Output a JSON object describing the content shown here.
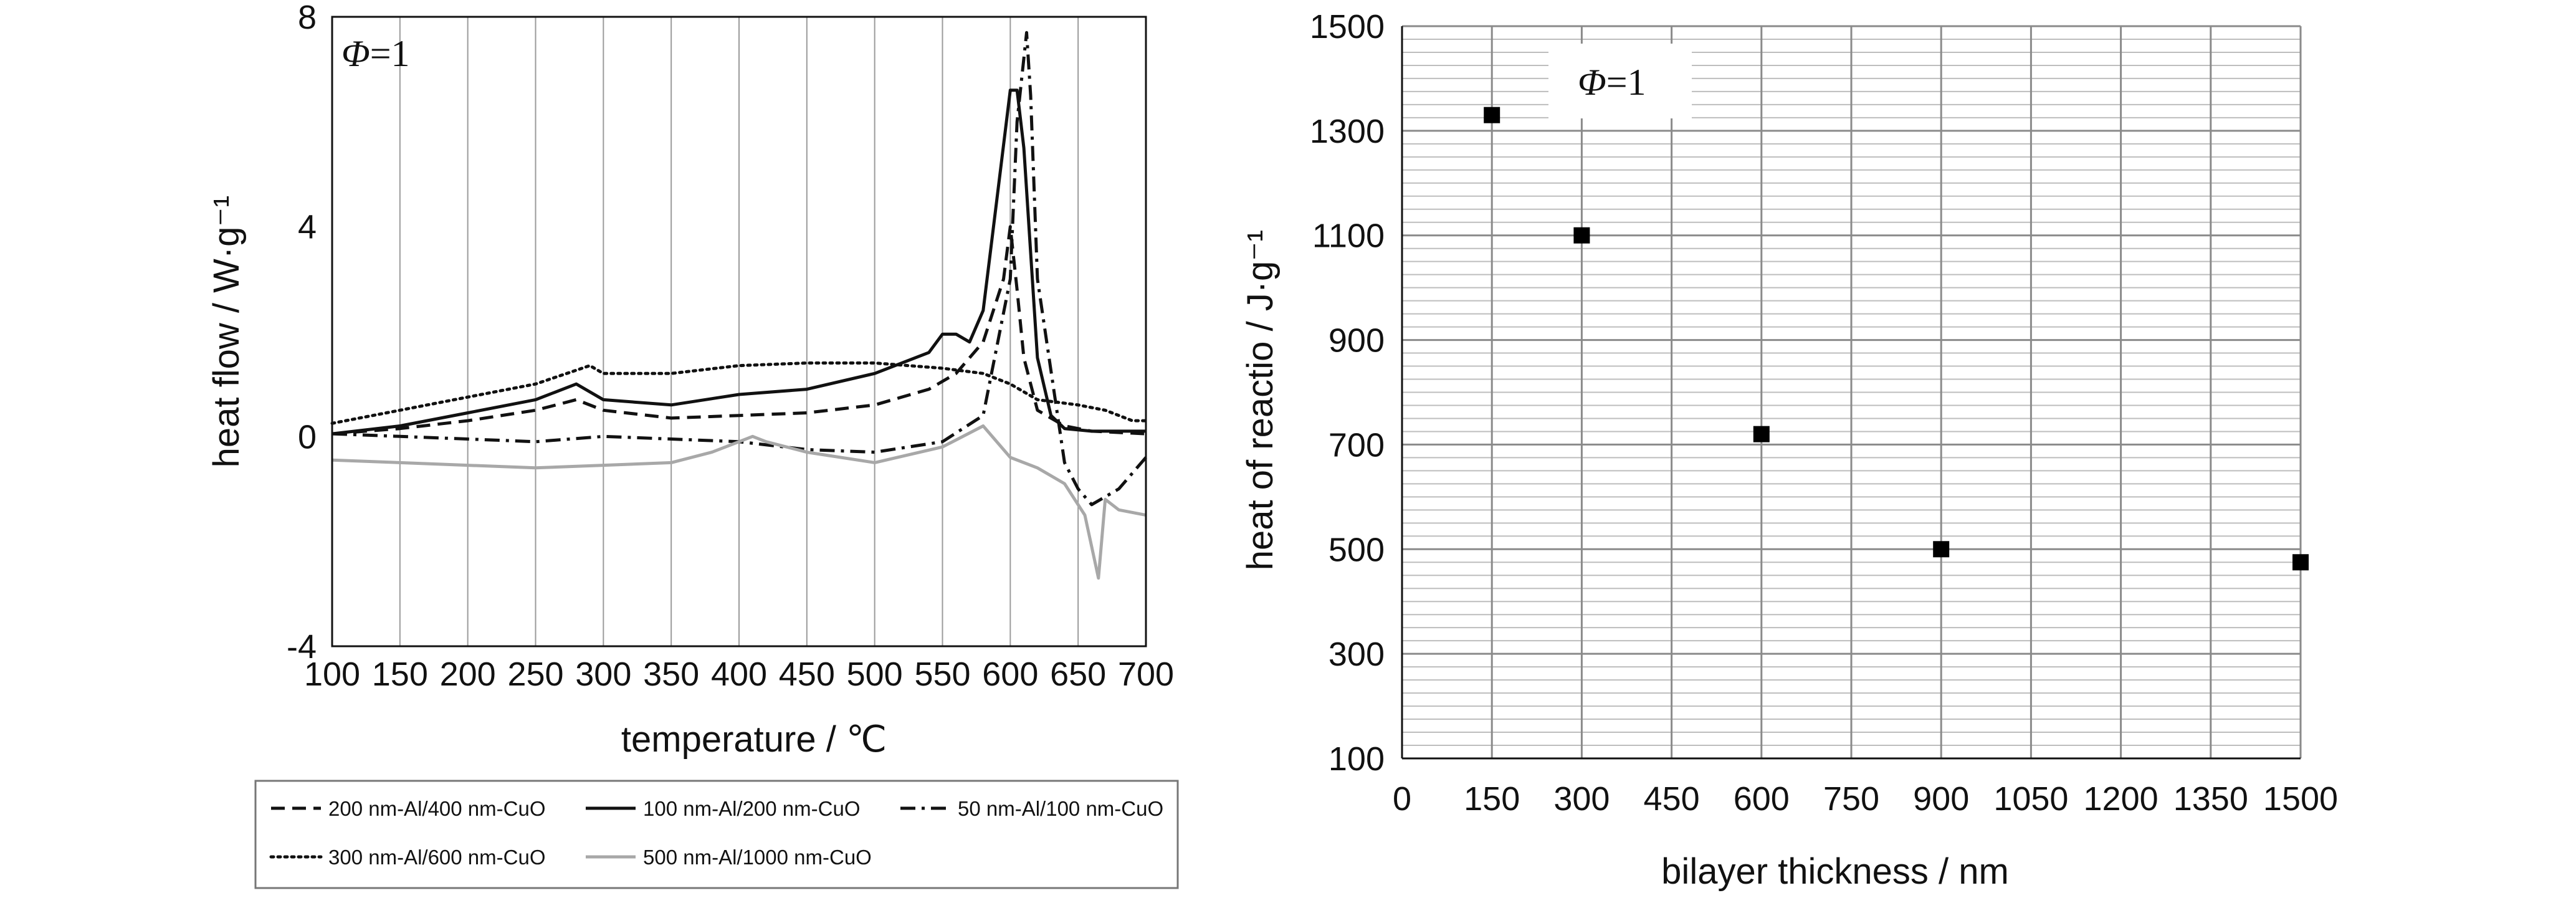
{
  "chart_data": [
    {
      "type": "line",
      "annotation": {
        "symbol": "Φ",
        "rest": "=1"
      },
      "xlabel": "temperature / ℃",
      "ylabel": "heat flow / W·g⁻¹",
      "xlim": [
        100,
        700
      ],
      "ylim": [
        -4,
        8
      ],
      "xticks": [
        "100",
        "150",
        "200",
        "250",
        "300",
        "350",
        "400",
        "450",
        "500",
        "550",
        "600",
        "650",
        "700"
      ],
      "yticks": [
        "-4",
        "0",
        "4",
        "8"
      ],
      "grid": "vertical",
      "legend_position": "bottom",
      "series": [
        {
          "name": "200 nm-Al/400 nm-CuO",
          "style": "dashed",
          "color": "#111111",
          "x": [
            100,
            150,
            200,
            250,
            280,
            300,
            350,
            400,
            450,
            500,
            540,
            560,
            580,
            595,
            600,
            605,
            610,
            620,
            640,
            660,
            700
          ],
          "y": [
            0.05,
            0.15,
            0.3,
            0.5,
            0.7,
            0.5,
            0.35,
            0.4,
            0.45,
            0.6,
            0.9,
            1.2,
            1.8,
            3.0,
            4.0,
            2.8,
            1.5,
            0.5,
            0.2,
            0.1,
            0.05
          ]
        },
        {
          "name": "100 nm-Al/200 nm-CuO",
          "style": "solid",
          "color": "#111111",
          "x": [
            100,
            150,
            200,
            250,
            280,
            300,
            350,
            400,
            450,
            500,
            540,
            550,
            560,
            570,
            580,
            590,
            600,
            605,
            610,
            620,
            630,
            640,
            660,
            700
          ],
          "y": [
            0.05,
            0.2,
            0.45,
            0.7,
            1.0,
            0.7,
            0.6,
            0.8,
            0.9,
            1.2,
            1.6,
            1.95,
            1.95,
            1.8,
            2.4,
            4.5,
            6.6,
            6.6,
            5.5,
            1.5,
            0.4,
            0.15,
            0.1,
            0.1
          ]
        },
        {
          "name": "50 nm-Al/100 nm-CuO",
          "style": "dashdot",
          "color": "#111111",
          "x": [
            100,
            150,
            200,
            250,
            300,
            350,
            400,
            450,
            500,
            550,
            580,
            600,
            605,
            612,
            615,
            620,
            640,
            650,
            660,
            680,
            700
          ],
          "y": [
            0.05,
            0.0,
            -0.05,
            -0.1,
            0.0,
            -0.05,
            -0.1,
            -0.25,
            -0.3,
            -0.1,
            0.4,
            3.0,
            6.0,
            7.7,
            6.5,
            3.0,
            -0.5,
            -1.0,
            -1.3,
            -1.0,
            -0.4
          ]
        },
        {
          "name": "300 nm-Al/600 nm-CuO",
          "style": "dotted",
          "color": "#111111",
          "x": [
            100,
            150,
            200,
            250,
            290,
            300,
            350,
            400,
            450,
            500,
            550,
            580,
            600,
            620,
            650,
            670,
            690,
            700
          ],
          "y": [
            0.25,
            0.5,
            0.75,
            1.0,
            1.35,
            1.2,
            1.2,
            1.35,
            1.4,
            1.4,
            1.3,
            1.2,
            1.0,
            0.7,
            0.6,
            0.5,
            0.3,
            0.3
          ]
        },
        {
          "name": "500 nm-Al/1000 nm-CuO",
          "style": "solid",
          "color": "#a8a8a8",
          "x": [
            100,
            150,
            200,
            250,
            300,
            350,
            380,
            400,
            410,
            420,
            450,
            500,
            550,
            580,
            600,
            620,
            640,
            655,
            665,
            670,
            680,
            700
          ],
          "y": [
            -0.45,
            -0.5,
            -0.55,
            -0.6,
            -0.55,
            -0.5,
            -0.3,
            -0.1,
            0.0,
            -0.1,
            -0.3,
            -0.5,
            -0.2,
            0.2,
            -0.4,
            -0.6,
            -0.9,
            -1.5,
            -2.7,
            -1.2,
            -1.4,
            -1.5
          ]
        }
      ]
    },
    {
      "type": "scatter",
      "annotation": {
        "symbol": "Φ",
        "rest": "=1"
      },
      "xlabel": "bilayer thickness / nm",
      "ylabel": "heat of reactio / J·g⁻¹",
      "xlim": [
        0,
        1500
      ],
      "ylim": [
        100,
        1500
      ],
      "xticks": [
        "0",
        "150",
        "300",
        "450",
        "600",
        "750",
        "900",
        "1050",
        "1200",
        "1350",
        "1500"
      ],
      "yticks": [
        "100",
        "300",
        "500",
        "700",
        "900",
        "1100",
        "1300",
        "1500"
      ],
      "grid": "both",
      "points": [
        {
          "x": 150,
          "y": 1330
        },
        {
          "x": 300,
          "y": 1100
        },
        {
          "x": 600,
          "y": 720
        },
        {
          "x": 900,
          "y": 500
        },
        {
          "x": 1500,
          "y": 475
        }
      ]
    }
  ]
}
